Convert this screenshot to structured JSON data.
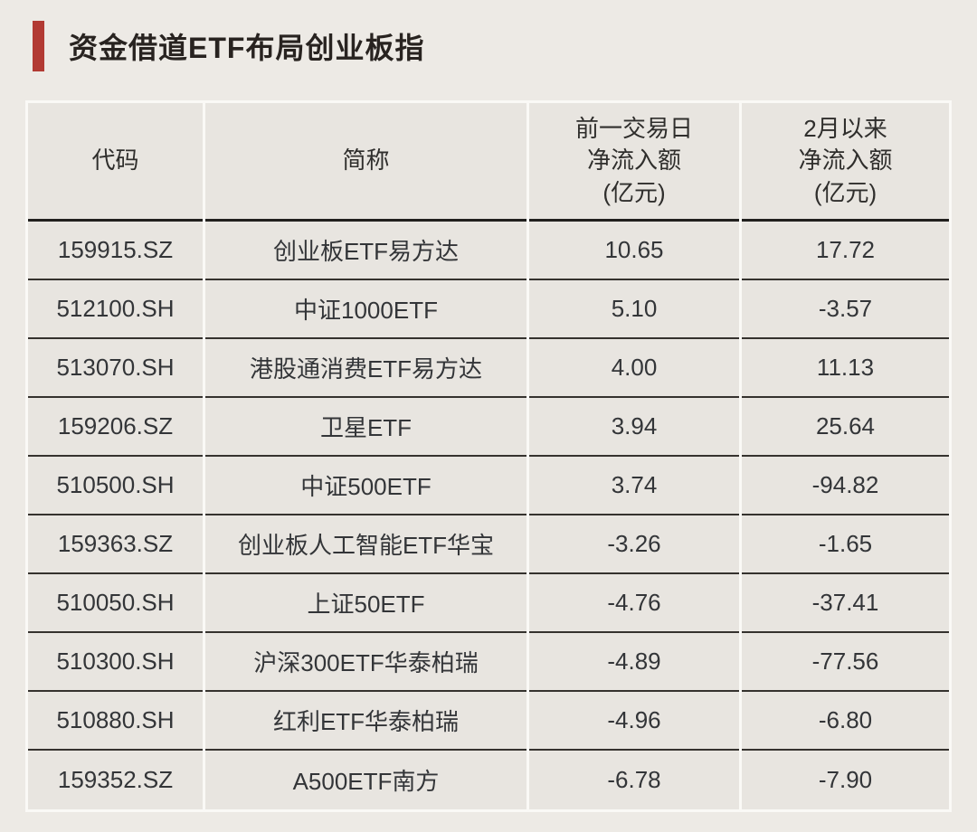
{
  "title": {
    "text": "资金借道ETF布局创业板指"
  },
  "colors": {
    "accent": "#b23a33",
    "page_bg": "#edeae5",
    "cell_bg": "#e8e5e0",
    "grid_light": "#faf9f6",
    "row_line": "#35322e",
    "header_line": "#21201e",
    "text": "#333538"
  },
  "chart_data": {
    "type": "table",
    "title": "资金借道ETF布局创业板指",
    "columns": [
      "代码",
      "简称",
      "前一交易日净流入额(亿元)",
      "2月以来净流入额(亿元)"
    ],
    "header_display": [
      "代码",
      "简称",
      "前一交易日\n净流入额\n(亿元)",
      "2月以来\n净流入额\n(亿元)"
    ],
    "rows": [
      [
        "159915.SZ",
        "创业板ETF易方达",
        "10.65",
        "17.72"
      ],
      [
        "512100.SH",
        "中证1000ETF",
        "5.10",
        "-3.57"
      ],
      [
        "513070.SH",
        "港股通消费ETF易方达",
        "4.00",
        "11.13"
      ],
      [
        "159206.SZ",
        "卫星ETF",
        "3.94",
        "25.64"
      ],
      [
        "510500.SH",
        "中证500ETF",
        "3.74",
        "-94.82"
      ],
      [
        "159363.SZ",
        "创业板人工智能ETF华宝",
        "-3.26",
        "-1.65"
      ],
      [
        "510050.SH",
        "上证50ETF",
        "-4.76",
        "-37.41"
      ],
      [
        "510300.SH",
        "沪深300ETF华泰柏瑞",
        "-4.89",
        "-77.56"
      ],
      [
        "510880.SH",
        "红利ETF华泰柏瑞",
        "-4.96",
        "-6.80"
      ],
      [
        "159352.SZ",
        "A500ETF南方",
        "-6.78",
        "-7.90"
      ]
    ]
  }
}
